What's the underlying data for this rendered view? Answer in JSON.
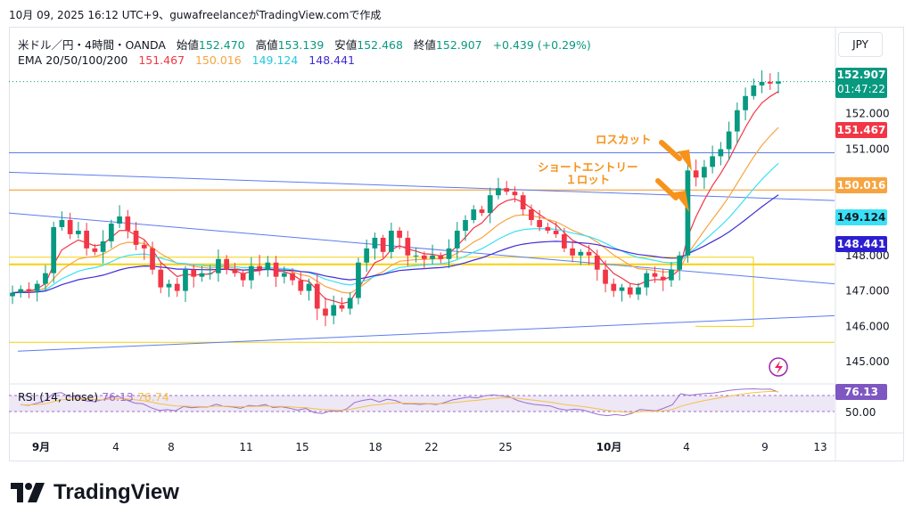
{
  "header": {
    "caption": "10月 09, 2025 16:12 UTC+9、guwafreelanceがTradingView.comで作成"
  },
  "legend": {
    "symbol": "米ドル／円・4時間・OANDA",
    "open_label": "始値",
    "open": "152.470",
    "high_label": "高値",
    "high": "153.139",
    "low_label": "安値",
    "low": "152.468",
    "close_label": "終値",
    "close": "152.907",
    "change": "+0.439 (+0.29%)",
    "ema_label": "EMA 20/50/100/200",
    "ema20": "151.467",
    "ema50": "150.016",
    "ema100": "149.124",
    "ema200": "148.441"
  },
  "currency_button": "JPY",
  "price_tags": {
    "last": "152.907",
    "countdown": "01:47:22",
    "ema20": "151.467",
    "ema50": "150.016",
    "ema100": "149.124",
    "ema200": "148.441",
    "rsi": "76.13"
  },
  "rsi_legend": {
    "label": "RSI (14, close)",
    "rsi": "76.13",
    "ma": "76.74"
  },
  "annotations": {
    "stoploss": "ロスカット",
    "short_entry_line1": "ショートエントリー",
    "short_entry_line2": "１ロット"
  },
  "branding": {
    "logo_text": "TradingView"
  },
  "colors": {
    "up": "#089981",
    "down": "#f23645",
    "ema20": "#f23645",
    "ema50": "#f7a440",
    "ema100": "#3ae0f5",
    "ema200": "#3f2bd6",
    "trendline": "#5b7cf0",
    "level": "#f5d10b",
    "annotation": "#f7931a",
    "rsi": "#9c6ecd",
    "rsi_ma": "#f7c144"
  },
  "chart_data": {
    "type": "candlestick",
    "symbol": "USDJPY",
    "timeframe": "4h",
    "y_ticks": [
      152.0,
      151.0,
      148.0,
      147.0,
      146.0,
      145.0
    ],
    "ylim": [
      144.4,
      153.4
    ],
    "x_tick_labels": [
      "9月",
      "4",
      "8",
      "11",
      "15",
      "18",
      "22",
      "25",
      "10月",
      "4",
      "9",
      "13"
    ],
    "rsi_ticks": [
      50.0
    ],
    "horizontal_levels": [
      150.9,
      149.85,
      147.95,
      147.75,
      145.55
    ],
    "close_path": [
      146.95,
      147.05,
      147.0,
      147.2,
      147.5,
      148.8,
      149.0,
      148.6,
      148.7,
      148.2,
      148.1,
      148.4,
      148.9,
      149.1,
      148.7,
      148.3,
      148.2,
      147.6,
      147.1,
      147.2,
      147.0,
      147.6,
      147.4,
      147.5,
      147.5,
      147.9,
      147.6,
      147.5,
      147.3,
      147.7,
      147.6,
      147.8,
      147.4,
      147.5,
      147.3,
      147.0,
      147.2,
      146.5,
      146.3,
      146.6,
      146.5,
      146.8,
      147.8,
      148.2,
      148.5,
      148.1,
      148.7,
      148.5,
      148.0,
      148.0,
      147.9,
      148.0,
      147.9,
      148.2,
      148.7,
      149.0,
      149.3,
      149.2,
      149.7,
      149.9,
      149.8,
      149.7,
      149.3,
      149.0,
      148.8,
      148.7,
      148.6,
      148.2,
      148.0,
      148.1,
      148.0,
      147.6,
      147.2,
      147.0,
      147.1,
      146.9,
      147.1,
      147.5,
      147.4,
      147.3,
      147.6,
      148.0,
      150.4,
      150.2,
      150.5,
      150.8,
      151.0,
      151.5,
      152.1,
      152.5,
      152.8,
      152.9,
      152.85,
      152.91
    ],
    "series": [
      {
        "name": "EMA 20",
        "last": 151.467
      },
      {
        "name": "EMA 50",
        "last": 150.016
      },
      {
        "name": "EMA 100",
        "last": 149.124
      },
      {
        "name": "EMA 200",
        "last": 148.441
      }
    ],
    "rsi": {
      "name": "RSI (14, close)",
      "last": 76.13,
      "ma_last": 76.74
    }
  }
}
